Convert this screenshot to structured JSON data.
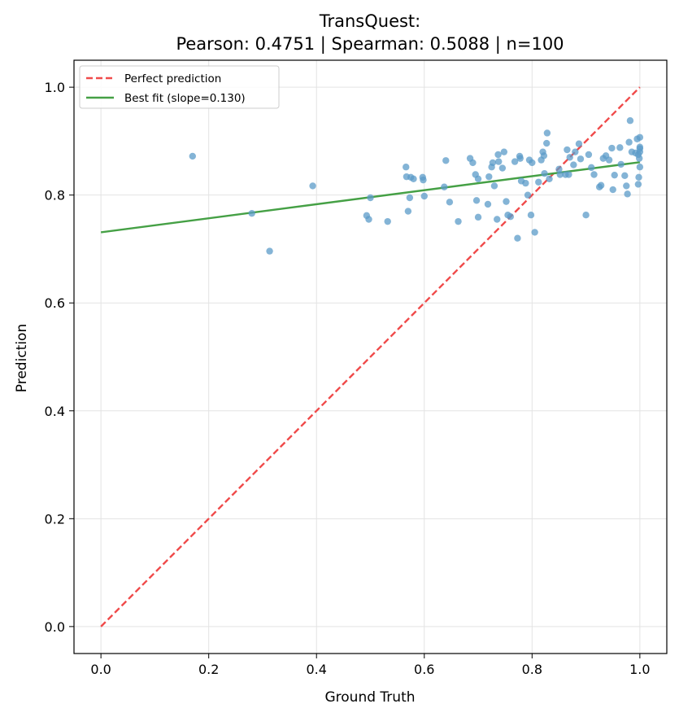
{
  "chart_data": {
    "type": "scatter",
    "title_line1": "TransQuest:",
    "title_line2": "Pearson: 0.4751 | Spearman: 0.5088 | n=100",
    "xlabel": "Ground Truth",
    "ylabel": "Prediction",
    "xlim": [
      -0.05,
      1.05
    ],
    "ylim": [
      -0.05,
      1.05
    ],
    "xticks": [
      0.0,
      0.2,
      0.4,
      0.6,
      0.8,
      1.0
    ],
    "xtick_labels": [
      "0.0",
      "0.2",
      "0.4",
      "0.6",
      "0.8",
      "1.0"
    ],
    "yticks": [
      0.0,
      0.2,
      0.4,
      0.6,
      0.8,
      1.0
    ],
    "ytick_labels": [
      "0.0",
      "0.2",
      "0.4",
      "0.6",
      "0.8",
      "1.0"
    ],
    "grid": true,
    "legend_position": "top-left",
    "legend": [
      {
        "label": "Perfect prediction",
        "color": "#f04b4b",
        "style": "dashed"
      },
      {
        "label": "Best fit (slope=0.130)",
        "color": "#45a045",
        "style": "solid"
      }
    ],
    "perfect_line": {
      "x": [
        0.0,
        1.0
      ],
      "y": [
        0.0,
        1.0
      ],
      "color": "#f04b4b"
    },
    "fit_line": {
      "x": [
        0.0,
        1.0
      ],
      "y": [
        0.731,
        0.861
      ],
      "color": "#45a045"
    },
    "point_color": "#5b9bc8",
    "points": [
      [
        0.17,
        0.872
      ],
      [
        0.28,
        0.766
      ],
      [
        0.313,
        0.696
      ],
      [
        0.393,
        0.817
      ],
      [
        0.493,
        0.762
      ],
      [
        0.497,
        0.755
      ],
      [
        0.5,
        0.795
      ],
      [
        0.532,
        0.751
      ],
      [
        0.566,
        0.852
      ],
      [
        0.567,
        0.834
      ],
      [
        0.57,
        0.77
      ],
      [
        0.573,
        0.795
      ],
      [
        0.575,
        0.833
      ],
      [
        0.58,
        0.83
      ],
      [
        0.597,
        0.833
      ],
      [
        0.598,
        0.828
      ],
      [
        0.6,
        0.798
      ],
      [
        0.637,
        0.815
      ],
      [
        0.64,
        0.864
      ],
      [
        0.647,
        0.787
      ],
      [
        0.663,
        0.751
      ],
      [
        0.685,
        0.868
      ],
      [
        0.69,
        0.86
      ],
      [
        0.695,
        0.838
      ],
      [
        0.697,
        0.79
      ],
      [
        0.7,
        0.759
      ],
      [
        0.7,
        0.83
      ],
      [
        0.718,
        0.783
      ],
      [
        0.72,
        0.834
      ],
      [
        0.725,
        0.852
      ],
      [
        0.727,
        0.86
      ],
      [
        0.73,
        0.817
      ],
      [
        0.735,
        0.755
      ],
      [
        0.737,
        0.875
      ],
      [
        0.738,
        0.862
      ],
      [
        0.745,
        0.85
      ],
      [
        0.748,
        0.88
      ],
      [
        0.752,
        0.788
      ],
      [
        0.755,
        0.763
      ],
      [
        0.76,
        0.76
      ],
      [
        0.768,
        0.862
      ],
      [
        0.773,
        0.72
      ],
      [
        0.777,
        0.872
      ],
      [
        0.778,
        0.868
      ],
      [
        0.78,
        0.826
      ],
      [
        0.788,
        0.822
      ],
      [
        0.792,
        0.8
      ],
      [
        0.795,
        0.865
      ],
      [
        0.798,
        0.763
      ],
      [
        0.8,
        0.86
      ],
      [
        0.805,
        0.731
      ],
      [
        0.812,
        0.824
      ],
      [
        0.817,
        0.865
      ],
      [
        0.82,
        0.88
      ],
      [
        0.822,
        0.873
      ],
      [
        0.823,
        0.84
      ],
      [
        0.827,
        0.896
      ],
      [
        0.828,
        0.915
      ],
      [
        0.832,
        0.83
      ],
      [
        0.85,
        0.848
      ],
      [
        0.852,
        0.838
      ],
      [
        0.862,
        0.838
      ],
      [
        0.865,
        0.884
      ],
      [
        0.868,
        0.838
      ],
      [
        0.87,
        0.87
      ],
      [
        0.877,
        0.856
      ],
      [
        0.88,
        0.88
      ],
      [
        0.887,
        0.895
      ],
      [
        0.89,
        0.867
      ],
      [
        0.9,
        0.763
      ],
      [
        0.905,
        0.875
      ],
      [
        0.91,
        0.851
      ],
      [
        0.915,
        0.838
      ],
      [
        0.925,
        0.815
      ],
      [
        0.928,
        0.818
      ],
      [
        0.932,
        0.868
      ],
      [
        0.937,
        0.873
      ],
      [
        0.943,
        0.865
      ],
      [
        0.948,
        0.887
      ],
      [
        0.95,
        0.81
      ],
      [
        0.953,
        0.837
      ],
      [
        0.963,
        0.888
      ],
      [
        0.965,
        0.857
      ],
      [
        0.972,
        0.836
      ],
      [
        0.975,
        0.817
      ],
      [
        0.977,
        0.802
      ],
      [
        0.98,
        0.898
      ],
      [
        0.982,
        0.938
      ],
      [
        0.985,
        0.88
      ],
      [
        0.992,
        0.878
      ],
      [
        0.995,
        0.904
      ],
      [
        0.997,
        0.82
      ],
      [
        0.997,
        0.875
      ],
      [
        0.998,
        0.833
      ],
      [
        0.999,
        0.868
      ],
      [
        1.0,
        0.88
      ],
      [
        1.0,
        0.907
      ],
      [
        1.0,
        0.852
      ],
      [
        1.0,
        0.889
      ],
      [
        1.0,
        0.886
      ]
    ]
  }
}
